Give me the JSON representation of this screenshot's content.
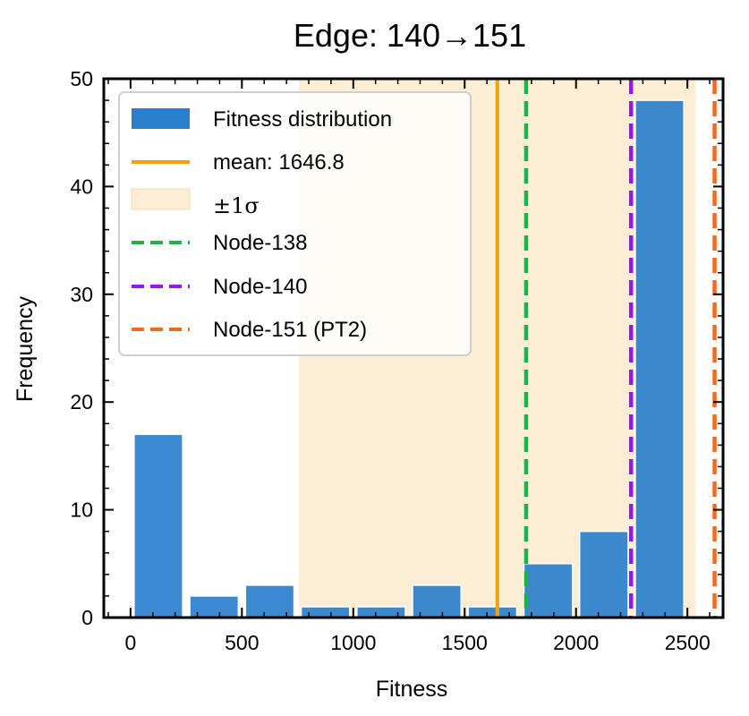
{
  "chart_data": {
    "type": "histogram",
    "title": "Edge: 140→151",
    "xlabel": "Fitness",
    "ylabel": "Frequency",
    "xlim": [
      -120,
      2660
    ],
    "ylim": [
      0,
      50
    ],
    "xticks": [
      0,
      500,
      1000,
      1500,
      2000,
      2500
    ],
    "yticks": [
      0,
      10,
      20,
      30,
      40,
      50
    ],
    "bin_edges": [
      0,
      250,
      500,
      750,
      1000,
      1250,
      1500,
      1750,
      2000,
      2250,
      2500
    ],
    "counts": [
      17,
      2,
      3,
      1,
      1,
      3,
      1,
      5,
      8,
      48
    ],
    "bar_color": "#2a7fcc",
    "mean": 1646.8,
    "std": 890,
    "mean_color": "#f2a20f",
    "sigma_color": "#fbeed4",
    "vlines": [
      {
        "name": "Node-138",
        "x": 1776,
        "color": "#19b24b"
      },
      {
        "name": "Node-140",
        "x": 2247,
        "color": "#9b14f0"
      },
      {
        "name": "Node-151 (PT2)",
        "x": 2622,
        "color": "#f26a1b"
      }
    ],
    "legend": {
      "position": "top-left",
      "entries": [
        "Fitness distribution",
        "mean: 1646.8",
        "±1σ",
        "Node-138",
        "Node-140",
        "Node-151 (PT2)"
      ]
    }
  }
}
